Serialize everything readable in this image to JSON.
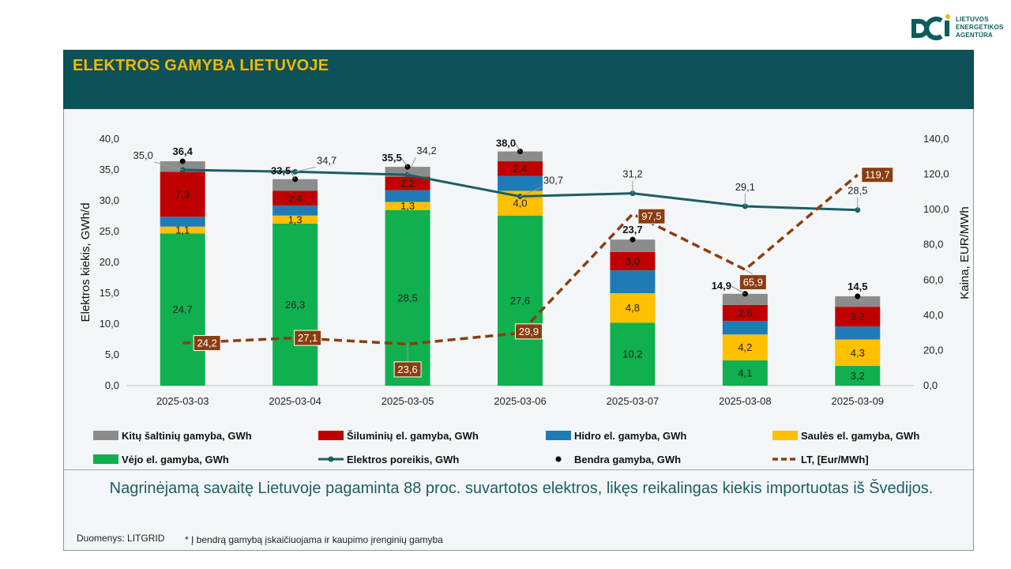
{
  "logo": {
    "lines": [
      "LIETUVOS",
      "ENERGETIKOS",
      "AGENTŪRA"
    ]
  },
  "title": "ELEKTROS GAMYBA LIETUVOJE",
  "summary": "Nagrinėjamą savaitę Lietuvoje pagaminta 88 proc. suvartotos elektros, likęs reikalingas kiekis importuotas iš Švedijos.",
  "source": "Duomenys: LITGRID",
  "footnote": "* Į bendrą gamybą įskaičiuojama ir kaupimo įrenginių gamyba",
  "colors": {
    "title_bg": "#0b5157",
    "title_text": "#f2b705",
    "wind": "#10b04f",
    "solar": "#ffc000",
    "hydro": "#1f7bb6",
    "thermal": "#c00000",
    "other": "#8c8c8c",
    "demand": "#1b5e63",
    "price": "#8b3d10"
  },
  "legend": [
    {
      "key": "other",
      "label": "Kitų šaltinių gamyba,  GWh",
      "kind": "box"
    },
    {
      "key": "thermal",
      "label": "Šiluminių el. gamyba, GWh",
      "kind": "box"
    },
    {
      "key": "hydro",
      "label": "Hidro el. gamyba, GWh",
      "kind": "box"
    },
    {
      "key": "solar",
      "label": "Saulės el. gamyba, GWh",
      "kind": "box"
    },
    {
      "key": "wind",
      "label": "Vėjo el. gamyba, GWh",
      "kind": "box"
    },
    {
      "key": "demand",
      "label": "Elektros poreikis, GWh",
      "kind": "line-marker"
    },
    {
      "key": "total",
      "label": "Bendra gamyba, GWh",
      "kind": "dot"
    },
    {
      "key": "price",
      "label": "LT, [Eur/MWh]",
      "kind": "dashed"
    }
  ],
  "chart_data": {
    "type": "bar",
    "stacked": true,
    "categories": [
      "2025-03-03",
      "2025-03-04",
      "2025-03-05",
      "2025-03-06",
      "2025-03-07",
      "2025-03-08",
      "2025-03-09"
    ],
    "series": [
      {
        "name": "Vėjo el. gamyba, GWh",
        "key": "wind",
        "values": [
          24.7,
          26.3,
          28.5,
          27.6,
          10.2,
          4.1,
          3.2
        ],
        "labels": [
          "24,7",
          "26,3",
          "28,5",
          "27,6",
          "10,2",
          "4,1",
          "3,2"
        ]
      },
      {
        "name": "Saulės el. gamyba, GWh",
        "key": "solar",
        "values": [
          1.1,
          1.3,
          1.3,
          4.0,
          4.8,
          4.2,
          4.3
        ],
        "labels": [
          "1,1",
          "1,3",
          "1,3",
          "4,0",
          "4,8",
          "4,2",
          "4,3"
        ]
      },
      {
        "name": "Hidro el. gamyba, GWh",
        "key": "hydro",
        "values": [
          1.6,
          1.6,
          1.9,
          2.4,
          3.7,
          2.2,
          2.1
        ],
        "labels": [
          "",
          "",
          "",
          "",
          "",
          "",
          ""
        ]
      },
      {
        "name": "Šiluminių el. gamyba, GWh",
        "key": "thermal",
        "values": [
          7.3,
          2.4,
          2.2,
          2.4,
          3.0,
          2.6,
          3.2
        ],
        "labels": [
          "7,3",
          "2,4",
          "2,2",
          "2,4",
          "3,0",
          "2,6",
          "3,2"
        ]
      },
      {
        "name": "Kitų šaltinių gamyba,  GWh",
        "key": "other",
        "values": [
          1.7,
          1.9,
          1.6,
          1.6,
          2.0,
          1.8,
          1.7
        ],
        "labels": [
          "",
          "",
          "",
          "",
          "",
          "",
          ""
        ]
      }
    ],
    "total": {
      "name": "Bendra gamyba, GWh",
      "values": [
        36.4,
        33.5,
        35.5,
        38.0,
        23.7,
        14.9,
        14.5
      ],
      "labels": [
        "36,4",
        "33,5",
        "35,5",
        "38,0",
        "23,7",
        "14,9",
        "14,5"
      ]
    },
    "demand": {
      "name": "Elektros poreikis, GWh",
      "values": [
        35.0,
        34.7,
        34.2,
        30.7,
        31.2,
        29.1,
        28.5
      ],
      "labels": [
        "35,0",
        "34,7",
        "34,2",
        "30,7",
        "31,2",
        "29,1",
        "28,5"
      ]
    },
    "price": {
      "name": "LT, [Eur/MWh]",
      "axis": "right",
      "values": [
        24.2,
        27.1,
        23.6,
        29.9,
        97.5,
        65.9,
        119.7
      ],
      "labels": [
        "24,2",
        "27,1",
        "23,6",
        "29,9",
        "97,5",
        "65,9",
        "119,7"
      ]
    },
    "ylabel": "Elektros kiekis, GWh/d",
    "y2label": "Kaina, EUR/MWh",
    "ylim": [
      0,
      40
    ],
    "y2lim": [
      0,
      140
    ],
    "yticks": [
      "0,0",
      "5,0",
      "10,0",
      "15,0",
      "20,0",
      "25,0",
      "30,0",
      "35,0",
      "40,0"
    ],
    "y2ticks": [
      "0,0",
      "20,0",
      "40,0",
      "60,0",
      "80,0",
      "100,0",
      "120,0",
      "140,0"
    ],
    "grid": false,
    "legend_position": "bottom"
  }
}
